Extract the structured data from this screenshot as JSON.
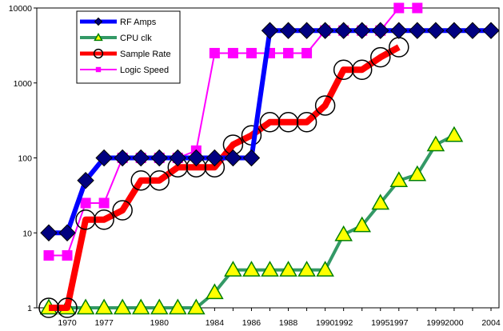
{
  "chart_data": {
    "type": "line",
    "yscale": "log",
    "ylim": [
      1,
      10000
    ],
    "yticks": [
      1,
      10,
      100,
      1000,
      10000
    ],
    "ytick_labels": [
      "1",
      "10",
      "100",
      "1000",
      "10000"
    ],
    "x": [
      "1968",
      "1970",
      "1973",
      "1977",
      "1978",
      "1979",
      "1980",
      "1981",
      "1982",
      "1984",
      "1985",
      "1986",
      "1987",
      "1988",
      "1989",
      "1990",
      "1992",
      "1993",
      "1995",
      "1997",
      "1998",
      "1999",
      "2000",
      "2003",
      "2004"
    ],
    "xtick_labels": [
      "1970",
      "1977",
      "1980",
      "1984",
      "1986",
      "1988",
      "1990",
      "1992",
      "1995",
      "1997",
      "1999",
      "2000",
      "2004"
    ],
    "grid": false,
    "legend_position": "top-left",
    "series": [
      {
        "name": "RF Amps",
        "color": "#0000ff",
        "marker": "diamond",
        "values": [
          10,
          10,
          50,
          100,
          100,
          100,
          100,
          100,
          100,
          100,
          100,
          100,
          5000,
          5000,
          5000,
          5000,
          5000,
          5000,
          5000,
          5000,
          5000,
          5000,
          5000,
          5000,
          5000
        ]
      },
      {
        "name": "CPU clk",
        "color": "#339966",
        "marker": "triangle",
        "values": [
          1,
          1,
          1,
          1,
          1,
          1,
          1,
          1,
          1,
          1.6,
          3.2,
          3.2,
          3.2,
          3.2,
          3.2,
          3.2,
          9.5,
          12.5,
          25,
          50,
          60,
          150,
          200,
          null,
          null
        ]
      },
      {
        "name": "Sample Rate",
        "color": "#ff0000",
        "marker": "circle",
        "values": [
          1,
          1,
          15,
          15,
          20,
          50,
          50,
          75,
          75,
          75,
          150,
          200,
          300,
          300,
          300,
          500,
          1500,
          1500,
          2200,
          3000,
          null,
          null,
          null,
          null,
          null
        ]
      },
      {
        "name": "Logic Speed",
        "color": "#ff00ff",
        "marker": "square",
        "values": [
          5,
          5,
          25,
          25,
          100,
          100,
          100,
          100,
          125,
          2500,
          2500,
          2500,
          2500,
          2500,
          2500,
          5000,
          5000,
          5000,
          5000,
          10000,
          10000,
          null,
          null,
          null,
          null
        ]
      }
    ]
  }
}
